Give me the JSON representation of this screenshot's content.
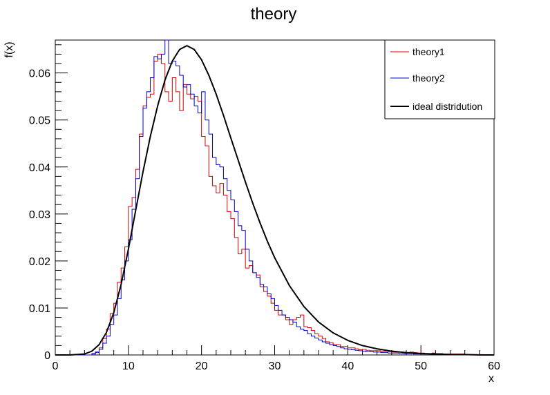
{
  "chart_data": {
    "type": "line",
    "title": "theory",
    "xlabel": "x",
    "ylabel": "f(x)",
    "xlim": [
      0,
      60
    ],
    "ylim": [
      0,
      0.067
    ],
    "x_ticks": [
      "0",
      "10",
      "20",
      "30",
      "40",
      "50",
      "60"
    ],
    "y_ticks": [
      "0",
      "0.01",
      "0.02",
      "0.03",
      "0.04",
      "0.05",
      "0.06"
    ],
    "y_tick_values": [
      0,
      0.01,
      0.02,
      0.03,
      0.04,
      0.05,
      0.06
    ],
    "x_tick_values": [
      0,
      10,
      20,
      30,
      40,
      50,
      60
    ],
    "grid": false,
    "legend_position": "top-right",
    "bin_edges": [
      0,
      60
    ],
    "bin_count": 120,
    "series": [
      {
        "name": "theory1",
        "type": "step-histogram",
        "color": "#d00000",
        "values": [
          0,
          0,
          0,
          0,
          0,
          0,
          0,
          0,
          0,
          0,
          0.0003,
          0.0007,
          0.0015,
          0.0035,
          0.0055,
          0.0088,
          0.011,
          0.0155,
          0.0185,
          0.023,
          0.0316,
          0.0335,
          0.0395,
          0.047,
          0.053,
          0.0548,
          0.0555,
          0.0625,
          0.064,
          0.062,
          0.056,
          0.054,
          0.059,
          0.056,
          0.052,
          0.0575,
          0.0555,
          0.0545,
          0.055,
          0.054,
          0.0465,
          0.0445,
          0.038,
          0.036,
          0.0345,
          0.0365,
          0.034,
          0.0305,
          0.029,
          0.025,
          0.0215,
          0.0225,
          0.0185,
          0.019,
          0.0175,
          0.017,
          0.0145,
          0.0135,
          0.0125,
          0.011,
          0.0095,
          0.0085,
          0.0085,
          0.0075,
          0.0065,
          0.0075,
          0.008,
          0.0085,
          0.006,
          0.0058,
          0.0052,
          0.0045,
          0.004,
          0.0035,
          0.0028,
          0.0026,
          0.0022,
          0.0022,
          0.0018,
          0.0018,
          0.0015,
          0.0015,
          0.0013,
          0.0011,
          0.0012,
          0.001,
          0.0009,
          0.0009,
          0.0009,
          0.0008,
          0.0008,
          0.0007,
          0.0006,
          0.0006,
          0.0006,
          0.0005,
          0.0005,
          0.0006,
          0.0005,
          0.0004,
          0.0004,
          0.0003,
          0.0003,
          0.0004,
          0.0003,
          0.0003,
          0.0002,
          0.0002,
          0.0002,
          0.0002,
          0.0002,
          0.0002,
          0.0001,
          0.0001,
          0.0001,
          0.0001,
          0.0001,
          0.0,
          0.0,
          0.0
        ]
      },
      {
        "name": "theory2",
        "type": "step-histogram",
        "color": "#0000c8",
        "values": [
          0,
          0,
          0,
          0,
          0,
          0,
          0,
          0,
          0,
          0,
          0.0002,
          0.0005,
          0.0012,
          0.0025,
          0.004,
          0.0065,
          0.0085,
          0.012,
          0.016,
          0.02,
          0.0245,
          0.031,
          0.0375,
          0.0465,
          0.0525,
          0.056,
          0.059,
          0.0635,
          0.063,
          0.064,
          0.067,
          0.062,
          0.0625,
          0.0615,
          0.0595,
          0.057,
          0.0575,
          0.0555,
          0.053,
          0.0515,
          0.056,
          0.05,
          0.047,
          0.042,
          0.0405,
          0.04,
          0.0375,
          0.035,
          0.033,
          0.0305,
          0.0275,
          0.0265,
          0.0225,
          0.02,
          0.0175,
          0.0165,
          0.015,
          0.0145,
          0.013,
          0.012,
          0.0105,
          0.0095,
          0.0085,
          0.008,
          0.0075,
          0.007,
          0.006,
          0.0055,
          0.0052,
          0.0045,
          0.004,
          0.0036,
          0.0032,
          0.0028,
          0.0025,
          0.0022,
          0.002,
          0.0018,
          0.0015,
          0.0013,
          0.0012,
          0.0011,
          0.001,
          0.0009,
          0.0008,
          0.0007,
          0.0007,
          0.0006,
          0.0006,
          0.0005,
          0.0005,
          0.0004,
          0.0004,
          0.0004,
          0.0003,
          0.0003,
          0.0003,
          0.0003,
          0.0002,
          0.0002,
          0.0002,
          0.0002,
          0.0002,
          0.0001,
          0.0001,
          0.0001,
          0.0001,
          0.0001,
          0.0001,
          0.0001,
          0.0001,
          0.0001,
          0.0001,
          0.0,
          0.0,
          0.0,
          0.0,
          0.0,
          0.0,
          0.0
        ]
      },
      {
        "name": "ideal distridution",
        "type": "curve",
        "color": "#000000",
        "x": [
          0,
          2,
          4,
          5,
          6,
          7,
          8,
          9,
          10,
          11,
          12,
          13,
          14,
          15,
          16,
          17,
          18,
          19,
          20,
          21,
          22,
          23,
          24,
          25,
          26,
          27,
          28,
          29,
          30,
          32,
          34,
          36,
          38,
          40,
          42,
          44,
          46,
          48,
          50,
          52,
          54,
          56,
          58,
          60
        ],
        "values": [
          0,
          0,
          0.0002,
          0.0008,
          0.0022,
          0.0048,
          0.009,
          0.015,
          0.0225,
          0.0308,
          0.039,
          0.0465,
          0.053,
          0.0585,
          0.0625,
          0.065,
          0.0658,
          0.065,
          0.0628,
          0.0595,
          0.0555,
          0.051,
          0.0462,
          0.0415,
          0.0368,
          0.0323,
          0.0281,
          0.0242,
          0.0207,
          0.0148,
          0.0103,
          0.007,
          0.0047,
          0.0031,
          0.002,
          0.0013,
          0.0008,
          0.0005,
          0.0003,
          0.0002,
          0.0001,
          0.0001,
          0,
          0
        ]
      }
    ]
  }
}
